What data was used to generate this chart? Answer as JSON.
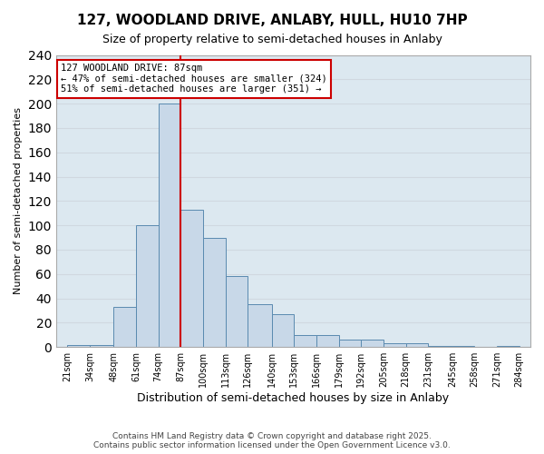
{
  "title": "127, WOODLAND DRIVE, ANLABY, HULL, HU10 7HP",
  "subtitle": "Size of property relative to semi-detached houses in Anlaby",
  "xlabel": "Distribution of semi-detached houses by size in Anlaby",
  "ylabel": "Number of semi-detached properties",
  "property_size": 87,
  "annotation_line1": "127 WOODLAND DRIVE: 87sqm",
  "annotation_line2": "← 47% of semi-detached houses are smaller (324)",
  "annotation_line3": "51% of semi-detached houses are larger (351) →",
  "footer1": "Contains HM Land Registry data © Crown copyright and database right 2025.",
  "footer2": "Contains public sector information licensed under the Open Government Licence v3.0.",
  "bin_edges": [
    21,
    34,
    48,
    61,
    74,
    87,
    100,
    113,
    126,
    140,
    153,
    166,
    179,
    192,
    205,
    218,
    231,
    245,
    258,
    271,
    284
  ],
  "bin_labels": [
    "21sqm",
    "34sqm",
    "48sqm",
    "61sqm",
    "74sqm",
    "87sqm",
    "100sqm",
    "113sqm",
    "126sqm",
    "140sqm",
    "153sqm",
    "166sqm",
    "179sqm",
    "192sqm",
    "205sqm",
    "218sqm",
    "231sqm",
    "245sqm",
    "258sqm",
    "271sqm",
    "284sqm"
  ],
  "counts": [
    2,
    2,
    33,
    100,
    200,
    113,
    90,
    58,
    35,
    27,
    10,
    10,
    6,
    6,
    3,
    3,
    1,
    1,
    0,
    1
  ],
  "bar_color": "#c8d8e8",
  "bar_edge_color": "#5a8ab0",
  "vline_color": "#cc0000",
  "grid_color": "#d0d8e0",
  "background_color": "#dce8f0",
  "box_color": "#cc0000",
  "ylim": [
    0,
    240
  ],
  "yticks": [
    0,
    20,
    40,
    60,
    80,
    100,
    120,
    140,
    160,
    180,
    200,
    220,
    240
  ]
}
